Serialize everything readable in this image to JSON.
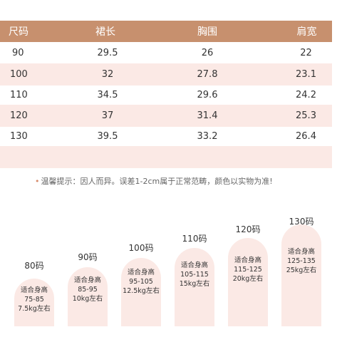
{
  "table": {
    "headers": [
      "尺码",
      "裙长",
      "胸围",
      "肩宽"
    ],
    "rows": [
      [
        "90",
        "29.5",
        "26",
        "22"
      ],
      [
        "100",
        "32",
        "27.8",
        "23.1"
      ],
      [
        "110",
        "34.5",
        "29.6",
        "24.2"
      ],
      [
        "120",
        "37",
        "31.4",
        "25.3"
      ],
      [
        "130",
        "39.5",
        "33.2",
        "26.4"
      ]
    ]
  },
  "tip": "温馨提示：因人而异。误差1-2cm属于正常范畴，颜色以实物为准!",
  "sizes": [
    {
      "label": "80码",
      "fit": "适合身高",
      "height": "75-85",
      "weight": "7.5kg左右"
    },
    {
      "label": "90码",
      "fit": "适合身高",
      "height": "85-95",
      "weight": "10kg左右"
    },
    {
      "label": "100码",
      "fit": "适合身高",
      "height": "95-105",
      "weight": "12.5kg左右"
    },
    {
      "label": "110码",
      "fit": "适合身高",
      "height": "105-115",
      "weight": "15kg左右"
    },
    {
      "label": "120码",
      "fit": "适合身高",
      "height": "115-125",
      "weight": "20kg左右"
    },
    {
      "label": "130码",
      "fit": "适合身高",
      "height": "125-135",
      "weight": "25kg左右"
    }
  ],
  "colors": {
    "header": "#c7906e",
    "tint": "#fbe9e5"
  }
}
